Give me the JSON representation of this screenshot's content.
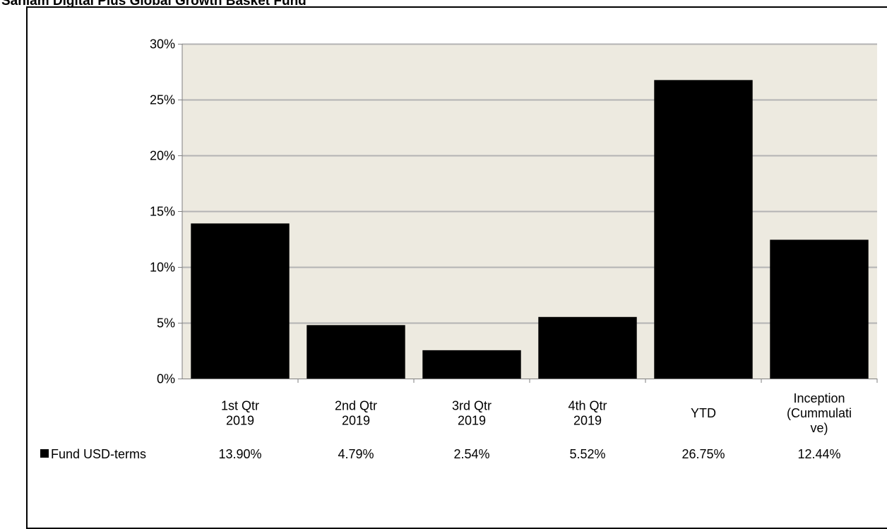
{
  "page": {
    "title": "Sanlam Digital Plus Global Growth Basket Fund"
  },
  "chart_data": {
    "type": "bar",
    "categories": [
      [
        "1st Qtr",
        "2019"
      ],
      [
        "2nd Qtr",
        "2019"
      ],
      [
        "3rd Qtr",
        "2019"
      ],
      [
        "4th Qtr",
        "2019"
      ],
      [
        "YTD"
      ],
      [
        "Inception",
        "(Cummulati",
        "ve)"
      ]
    ],
    "series": [
      {
        "name": "Fund USD-terms",
        "values": [
          13.9,
          4.79,
          2.54,
          5.52,
          26.75,
          12.44
        ],
        "labels": [
          "13.90%",
          "4.79%",
          "2.54%",
          "5.52%",
          "26.75%",
          "12.44%"
        ]
      }
    ],
    "ylim": [
      0,
      30
    ],
    "yticks": [
      0,
      5,
      10,
      15,
      20,
      25,
      30
    ],
    "ytick_labels": [
      "0%",
      "5%",
      "10%",
      "15%",
      "20%",
      "25%",
      "30%"
    ],
    "grid": true,
    "legend_placement": "data-table-left",
    "colors": {
      "bar": "#000000",
      "plot_bg": "#edeae0",
      "grid": "#b3b3b3"
    }
  }
}
